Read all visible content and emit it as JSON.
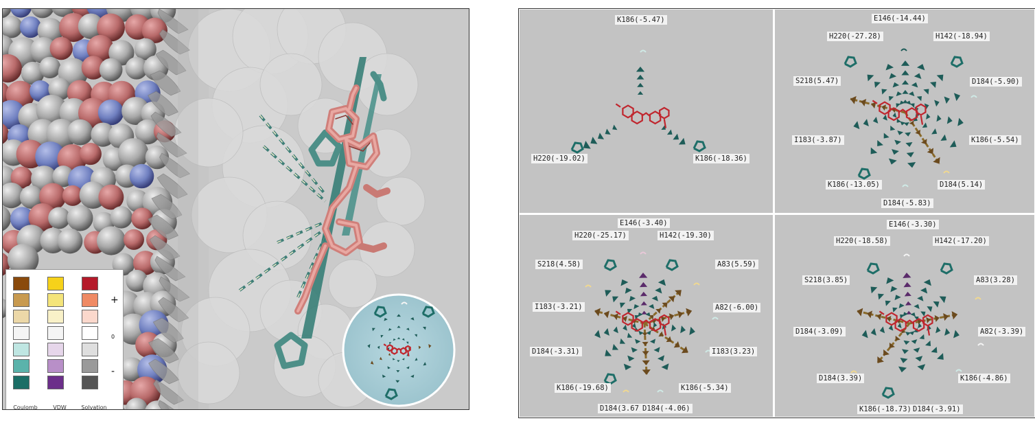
{
  "legend": {
    "columns": [
      "Coulomb",
      "VDW",
      "Solvation"
    ],
    "signs": [
      "+",
      "0",
      "-"
    ],
    "colors": {
      "coulomb": [
        "#8a4a0c",
        "#c89a50",
        "#ecd8a8",
        "#f5f5f5",
        "#bfe6e2",
        "#5bb3ab",
        "#1b6e66"
      ],
      "vdw": [
        "#f6d21a",
        "#f4e47a",
        "#f9f1c8",
        "#f5f5f5",
        "#e6d6ea",
        "#b88fc8",
        "#6c2f8a"
      ],
      "solvation": [
        "#b51a2a",
        "#ef8a64",
        "#fbd8cc",
        "#ffffff",
        "#dedede",
        "#9a9a9a",
        "#555555"
      ]
    }
  },
  "quadrants": [
    {
      "labels": [
        "K186(-5.47)",
        "H220(-19.02)",
        "K186(-18.36)"
      ]
    },
    {
      "labels": [
        "E146(-14.44)",
        "H220(-27.28)",
        "H142(-18.94)",
        "S218(5.47)",
        "D184(-5.90)",
        "I183(-3.87)",
        "K186(-5.54)",
        "K186(-13.05)",
        "D184(5.14)",
        "D184(-5.83)"
      ]
    },
    {
      "labels": [
        "E146(-3.40)",
        "H220(-25.17)",
        "H142(-19.30)",
        "S218(4.58)",
        "A83(5.59)",
        "I183(-3.21)",
        "A82(-6.00)",
        "D184(-3.31)",
        "I183(3.23)",
        "K186(-19.68)",
        "K186(-5.34)",
        "D184(3.67)",
        "D184(-4.06)"
      ]
    },
    {
      "labels": [
        "E146(-3.30)",
        "H220(-18.58)",
        "H142(-17.20)",
        "S218(3.85)",
        "A83(3.28)",
        "D184(-3.09)",
        "A82(-3.39)",
        "D184(3.39)",
        "K186(-4.86)",
        "K186(-18.73)",
        "D184(-3.91)"
      ]
    }
  ]
}
